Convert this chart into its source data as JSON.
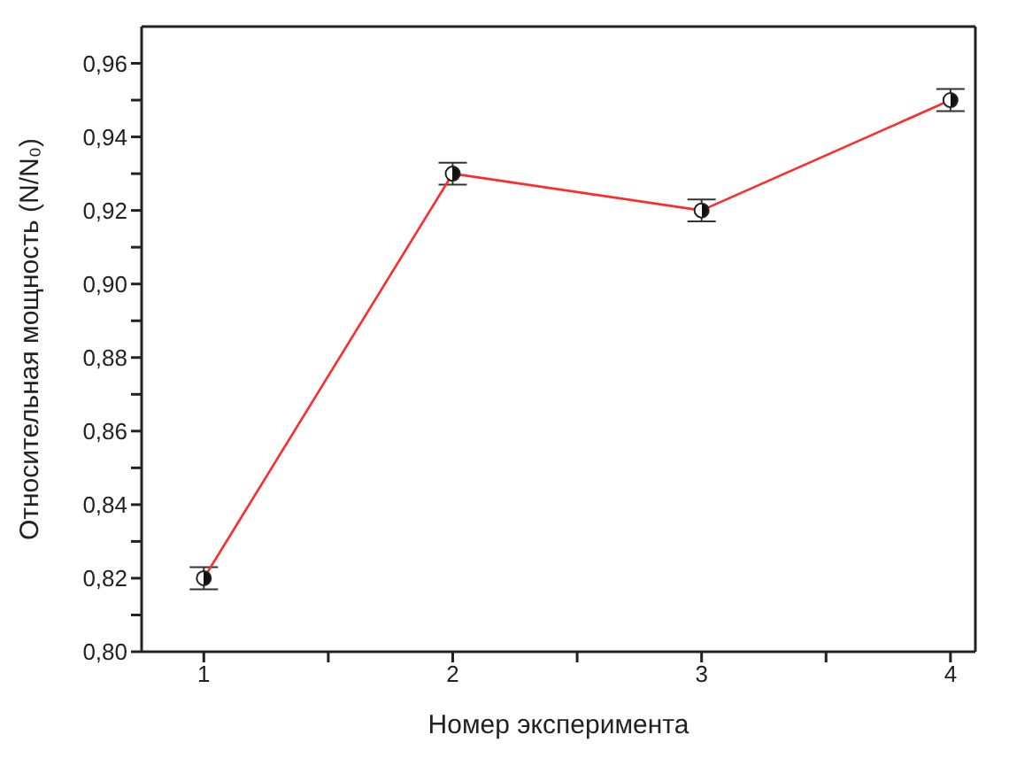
{
  "chart_data": {
    "type": "line",
    "xlabel": "Номер эксперимента",
    "ylabel": "Относительная мощность  (N/N₀)",
    "x": [
      1,
      2,
      3,
      4
    ],
    "series": [
      {
        "color": "#ff2a2a",
        "values": [
          0.82,
          0.93,
          0.92,
          0.95
        ],
        "errors": [
          0.003,
          0.003,
          0.003,
          0.003
        ]
      }
    ],
    "xlim": [
      0.75,
      4.1
    ],
    "xticks": [
      1,
      {
        "value": 1.5,
        "label": null
      },
      2,
      {
        "value": 2.5,
        "label": null
      },
      3,
      {
        "value": 3.5,
        "label": null
      },
      4
    ],
    "ylim": [
      0.8,
      0.97
    ],
    "yticks": [
      {
        "value": 0.8,
        "label": "0,80"
      },
      {
        "value": 0.81,
        "label": null
      },
      {
        "value": 0.82,
        "label": "0,82"
      },
      {
        "value": 0.83,
        "label": null
      },
      {
        "value": 0.84,
        "label": "0,84"
      },
      {
        "value": 0.85,
        "label": null
      },
      {
        "value": 0.86,
        "label": "0,86"
      },
      {
        "value": 0.87,
        "label": null
      },
      {
        "value": 0.88,
        "label": "0,88"
      },
      {
        "value": 0.89,
        "label": null
      },
      {
        "value": 0.9,
        "label": "0,90"
      },
      {
        "value": 0.91,
        "label": null
      },
      {
        "value": 0.92,
        "label": "0,92"
      },
      {
        "value": 0.93,
        "label": null
      },
      {
        "value": 0.94,
        "label": "0,94"
      },
      {
        "value": 0.95,
        "label": null
      },
      {
        "value": 0.96,
        "label": "0,96"
      }
    ],
    "grid": false,
    "legend": false,
    "marker": "circle",
    "line_style": "solid"
  }
}
